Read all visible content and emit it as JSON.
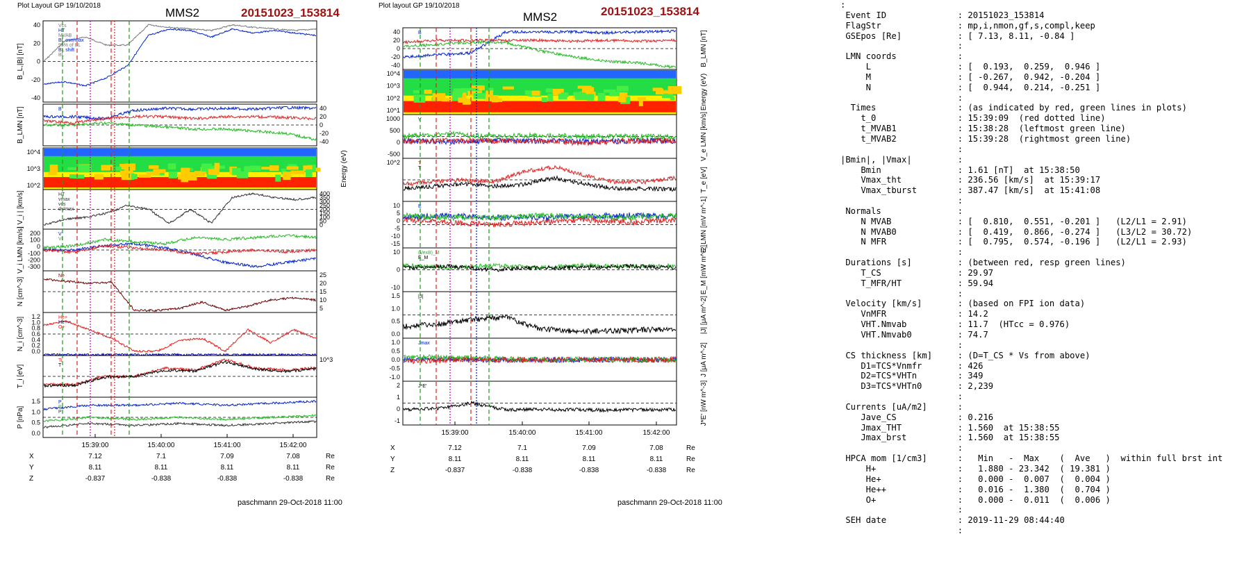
{
  "left": {
    "header": "Plot Layout GP 19/10/2018",
    "title": "MMS2",
    "event": "20151023_153814",
    "footer": "paschmann 29-Oct-2018 11:00",
    "xticks": [
      "15:39:00",
      "15:40:00",
      "15:41:00",
      "15:42:00"
    ],
    "panels": [
      {
        "id": "bl",
        "ylabel": "B_L,|B| [nT]",
        "yticks": [
          "40",
          "20",
          "0",
          "-20",
          "-40"
        ],
        "legend": [
          "Vcs",
          "HT",
          "MVAB",
          "BL min/max",
          "95% of BL",
          "BL shift",
          "BL"
        ]
      },
      {
        "id": "blmn",
        "ylabel": "B_LMN [nT]",
        "yticks": [
          "40",
          "20",
          "0",
          "-20",
          "-40"
        ],
        "legend": [
          "B"
        ]
      },
      {
        "id": "spec",
        "ylabel": "Energy (eV)",
        "yticks": [
          "10^4",
          "10^3",
          "10^2"
        ]
      },
      {
        "id": "vi",
        "ylabel": "| V_i | [km/s]",
        "yticks": [
          "400",
          "350",
          "300",
          "250",
          "200",
          "150",
          "100",
          "50",
          "0"
        ],
        "legend": [
          "HT",
          "vmax",
          "vcs",
          "dv/max"
        ]
      },
      {
        "id": "vilmn",
        "ylabel": "V_i LMN [km/s]",
        "yticks": [
          "200",
          "100",
          "0",
          "-100",
          "-200",
          "-300"
        ],
        "legend": [
          "V",
          "Vi"
        ]
      },
      {
        "id": "n",
        "ylabel": "N [cm^-3]",
        "yticks": [
          "25",
          "20",
          "15",
          "10",
          "5"
        ],
        "legend": [
          "Ne"
        ]
      },
      {
        "id": "ni",
        "ylabel": "N_i [cm^-3]",
        "yticks": [
          "1.2",
          "1.0",
          "0.8",
          "0.6",
          "0.4",
          "0.2",
          "0.0"
        ],
        "legend": [
          "He+",
          "He++",
          "O+"
        ]
      },
      {
        "id": "ti",
        "ylabel": "T_i [eV]",
        "yticks": [
          "10^3"
        ],
        "legend": [
          "Ti",
          "T"
        ]
      },
      {
        "id": "p",
        "ylabel": "P [nPa]",
        "yticks": [
          "1.5",
          "1.0",
          "0.5",
          "0.0"
        ],
        "legend": [
          "P",
          "P",
          "P"
        ]
      }
    ],
    "coords": {
      "labels": [
        "X",
        "Y",
        "Z"
      ],
      "rows": [
        [
          "7.12",
          "7.1",
          "7.09",
          "7.08"
        ],
        [
          "8.11",
          "8.11",
          "8.11",
          "8.11"
        ],
        [
          "-0.837",
          "-0.838",
          "-0.838",
          "-0.838"
        ]
      ],
      "unit": "Re"
    }
  },
  "middle": {
    "header": "Plot layout GP 19/10/2018",
    "title": "MMS2",
    "event": "20151023_153814",
    "footer": "paschmann 29-Oct-2018 11:00",
    "xticks": [
      "15:39:00",
      "15:40:00",
      "15:41:00",
      "15:42:00"
    ],
    "panels": [
      {
        "id": "blmn",
        "ylabel": "B_LMN [nT]",
        "yticks": [
          "40",
          "20",
          "0",
          "-20",
          "-40"
        ],
        "legend": [
          "B"
        ]
      },
      {
        "id": "spec",
        "ylabel": "Energy (eV)",
        "yticks": [
          "10^4",
          "10^3",
          "10^2",
          "10^1"
        ]
      },
      {
        "id": "ve",
        "ylabel": "V_e LMN [km/s]",
        "yticks": [
          "1000",
          "500",
          "0",
          "-500"
        ],
        "legend": [
          "V"
        ]
      },
      {
        "id": "te",
        "ylabel": "T_e [eV]",
        "yticks": [
          "10^2"
        ],
        "legend": [
          "T",
          "T"
        ]
      },
      {
        "id": "e",
        "ylabel": "E_LMN [mV m^-1]",
        "yticks": [
          "10",
          "5",
          "0",
          "-5",
          "-10",
          "-15"
        ],
        "legend": [
          "E"
        ]
      },
      {
        "id": "em",
        "ylabel": "E_M [mW m^-2]",
        "yticks": [
          "10",
          "0",
          "-10"
        ],
        "legend": [
          "(VexB)_M",
          "E_M"
        ]
      },
      {
        "id": "j",
        "ylabel": "|J| [μA m^-2]",
        "yticks": [
          "1.5",
          "1.0",
          "0.5",
          "0.0"
        ],
        "legend": [
          "|J|"
        ]
      },
      {
        "id": "jlmn",
        "ylabel": "J [μA m^-2]",
        "yticks": [
          "1.0",
          "0.5",
          "0.0",
          "-0.5",
          "-1.0"
        ],
        "legend": [
          "Jmax"
        ]
      },
      {
        "id": "je",
        "ylabel": "J*E' [nW m^-3]",
        "yticks": [
          "2",
          "1",
          "0",
          "-1"
        ],
        "legend": [
          "J*E'"
        ]
      }
    ],
    "coords": {
      "labels": [
        "X",
        "Y",
        "Z"
      ],
      "rows": [
        [
          "7.12",
          "7.1",
          "7.09",
          "7.08"
        ],
        [
          "8.11",
          "8.11",
          "8.11",
          "8.11"
        ],
        [
          "-0.837",
          "-0.838",
          "-0.838",
          "-0.838"
        ]
      ],
      "unit": "Re"
    }
  },
  "summary_lines": [
    ":",
    " Event ID              : 20151023_153814",
    " FlagStr               : mp,i,nmon,gf,s,compl,keep",
    " GSEpos [Re]           : [ 7.13, 8.11, -0.84 ]",
    "                       :",
    " LMN coords            :",
    "     L                 : [  0.193,  0.259,  0.946 ]",
    "     M                 : [ -0.267,  0.942, -0.204 ]",
    "     N                 : [  0.944,  0.214, -0.251 ]",
    "                       :",
    "  Times                : (as indicated by red, green lines in plots)",
    "    t_0                : 15:39:09  (red dotted line)",
    "    t_MVAB1            : 15:38:28  (leftmost green line)",
    "    t_MVAB2            : 15:39:28  (rightmost green line)",
    "                       :",
    "|Bmin|, |Vmax|         :",
    "    Bmin               : 1.61 [nT]  at 15:38:50",
    "    Vmax_tht           : 236.56 [km/s]  at 15:39:17",
    "    Vmax_tburst        : 387.47 [km/s]  at 15:41:08",
    "                       :",
    " Normals               :",
    "    N MVAB             : [  0.810,  0.551, -0.201 ]   (L2/L1 = 2.91)",
    "    N MVAB0            : [  0.419,  0.866, -0.274 ]   (L3/L2 = 30.72)",
    "    N MFR              : [  0.795,  0.574, -0.196 ]   (L2/L1 = 2.93)",
    "                       :",
    " Durations [s]         : (between red, resp green lines)",
    "    T_CS               : 29.97",
    "    T_MFR/HT           : 59.94",
    "                       :",
    " Velocity [km/s]       : (based on FPI ion data)",
    "    VnMFR              : 14.2",
    "    VHT.Nmvab          : 11.7  (HTcc = 0.976)",
    "    VHT.Nmvab0         : 74.7",
    "                       :",
    " CS thickness [km]     : (D=T_CS * Vs from above)",
    "    D1=TCS*Vnmfr       : 426",
    "    D2=TCS*VHTn        : 349",
    "    D3=TCS*VHTn0       : 2,239",
    "                       :",
    " Currents [uA/m2]      :",
    "    Jave_CS            : 0.216",
    "    Jmax_THT           : 1.560  at 15:38:55",
    "    Jmax_brst          : 1.560  at 15:38:55",
    "                       :",
    " HPCA mom [1/cm3]      :   Min   -  Max    (  Ave   )  within full brst int",
    "     H+                :   1.880 - 23.342  ( 19.381 )",
    "     He+               :   0.000 -  0.007  (  0.004 )",
    "     He++              :   0.016 -  1.380  (  0.704 )",
    "     O+                :   0.000 -  0.011  (  0.006 )",
    "                       :",
    " SEH date              : 2019-11-29 08:44:40",
    "                       :"
  ],
  "chart_data": [
    {
      "type": "line",
      "title": "MMS2",
      "subtitle": "20151023_153814",
      "x_ticks": [
        "15:39:00",
        "15:40:00",
        "15:41:00",
        "15:42:00"
      ],
      "series": [
        {
          "name": "BL",
          "values": [
            -20,
            -22,
            -20,
            -15,
            -5,
            5,
            20,
            40,
            45,
            44,
            42,
            40,
            38,
            36,
            38,
            35,
            34,
            36
          ]
        },
        {
          "name": "Vi",
          "values": [
            100,
            120,
            130,
            150,
            120,
            200,
            230,
            220,
            160,
            150,
            270,
            250,
            120,
            300,
            380,
            350,
            320,
            330
          ]
        },
        {
          "name": "Ne",
          "values": [
            24,
            22,
            20,
            18,
            18,
            2,
            2,
            2,
            3,
            6,
            2,
            3,
            5,
            8,
            10,
            11,
            12,
            11
          ]
        },
        {
          "name": "He++",
          "values": [
            0.8,
            1.0,
            0.9,
            0.7,
            0.5,
            0.1,
            0.05,
            0.1,
            0.4,
            0.45,
            0.1,
            0.1,
            0.05,
            0.6,
            0.35,
            0.8,
            0.4,
            0.3
          ]
        }
      ]
    },
    {
      "type": "line",
      "title": "MMS2",
      "subtitle": "20151023_153814",
      "x_ticks": [
        "15:39:00",
        "15:40:00",
        "15:41:00",
        "15:42:00"
      ],
      "series": [
        {
          "name": "B",
          "values": [
            -20,
            -15,
            -10,
            -5,
            15,
            40,
            42,
            40,
            36,
            33,
            38,
            40,
            36,
            32,
            30,
            35,
            33,
            34
          ]
        },
        {
          "name": "|J|",
          "values": [
            0.2,
            0.5,
            0.3,
            0.6,
            1.3,
            0.5,
            0.3,
            0.2,
            0.15,
            0.1,
            0.1,
            0.3,
            0.15,
            0.1,
            0.08,
            0.1,
            0.2,
            0.1
          ]
        },
        {
          "name": "J*E'",
          "values": [
            0.1,
            0.5,
            0.2,
            1.2,
            2.0,
            0.4,
            0.2,
            0.1,
            0.1,
            0.8,
            0.2,
            0.1,
            0.1,
            0.1,
            0.1,
            0.05,
            0.2,
            0.1
          ]
        }
      ]
    }
  ]
}
